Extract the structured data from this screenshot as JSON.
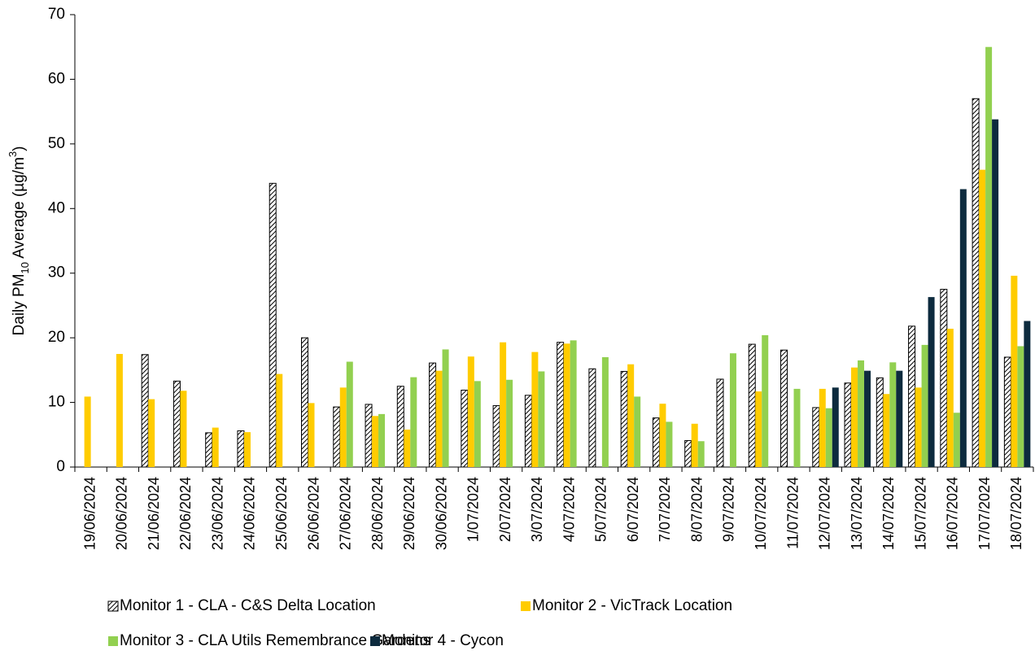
{
  "chart_data": {
    "type": "bar",
    "y_label": [
      "Daily PM",
      "10",
      " Average (µg/m",
      "3",
      ")"
    ],
    "categories": [
      "19/06/2024",
      "20/06/2024",
      "21/06/2024",
      "22/06/2024",
      "23/06/2024",
      "24/06/2024",
      "25/06/2024",
      "26/06/2024",
      "27/06/2024",
      "28/06/2024",
      "29/06/2024",
      "30/06/2024",
      "1/07/2024",
      "2/07/2024",
      "3/07/2024",
      "4/07/2024",
      "5/07/2024",
      "6/07/2024",
      "7/07/2024",
      "8/07/2024",
      "9/07/2024",
      "10/07/2024",
      "11/07/2024",
      "12/07/2024",
      "13/07/2024",
      "14/07/2024",
      "15/07/2024",
      "16/07/2024",
      "17/07/2024",
      "18/07/2024"
    ],
    "series": [
      {
        "name": "Monitor 1 - CLA - C&S Delta Location",
        "color": "#000000",
        "hatch": true,
        "values": [
          null,
          null,
          17.4,
          13.3,
          5.3,
          5.6,
          43.9,
          20.0,
          9.3,
          9.7,
          12.5,
          16.1,
          11.9,
          9.5,
          11.1,
          19.3,
          15.2,
          14.8,
          7.6,
          4.1,
          13.6,
          19.0,
          18.1,
          9.2,
          13.0,
          13.8,
          21.8,
          27.5,
          57.0,
          17.0
        ]
      },
      {
        "name": "Monitor 2 - VicTrack Location",
        "color": "#ffcc00",
        "values": [
          10.9,
          17.5,
          10.5,
          11.8,
          6.1,
          5.4,
          14.4,
          9.9,
          12.3,
          7.9,
          5.8,
          14.9,
          17.1,
          19.3,
          17.8,
          19.1,
          null,
          15.9,
          9.8,
          6.7,
          null,
          11.7,
          null,
          12.1,
          15.4,
          11.3,
          12.3,
          21.4,
          46.0,
          29.6
        ]
      },
      {
        "name": "Monitor 3 - CLA Utils Remembrance Gardens",
        "color": "#92d050",
        "values": [
          null,
          null,
          null,
          null,
          null,
          null,
          null,
          null,
          16.3,
          8.2,
          13.9,
          18.2,
          13.3,
          13.5,
          14.8,
          19.6,
          17.0,
          10.9,
          7.0,
          4.0,
          17.6,
          20.4,
          12.1,
          9.1,
          16.5,
          16.2,
          18.9,
          8.4,
          65.0,
          18.7
        ]
      },
      {
        "name": "Monitor 4 - Cycon",
        "color": "#0d2b3e",
        "values": [
          null,
          null,
          null,
          null,
          null,
          null,
          null,
          null,
          null,
          null,
          null,
          null,
          null,
          null,
          null,
          null,
          null,
          null,
          null,
          null,
          null,
          null,
          null,
          12.3,
          14.9,
          14.9,
          26.3,
          43.0,
          53.8,
          22.6
        ]
      }
    ],
    "ylim": [
      0,
      70
    ],
    "yticks": [
      0,
      10,
      20,
      30,
      40,
      50,
      60,
      70
    ],
    "grid": false,
    "legend": "bottom"
  }
}
